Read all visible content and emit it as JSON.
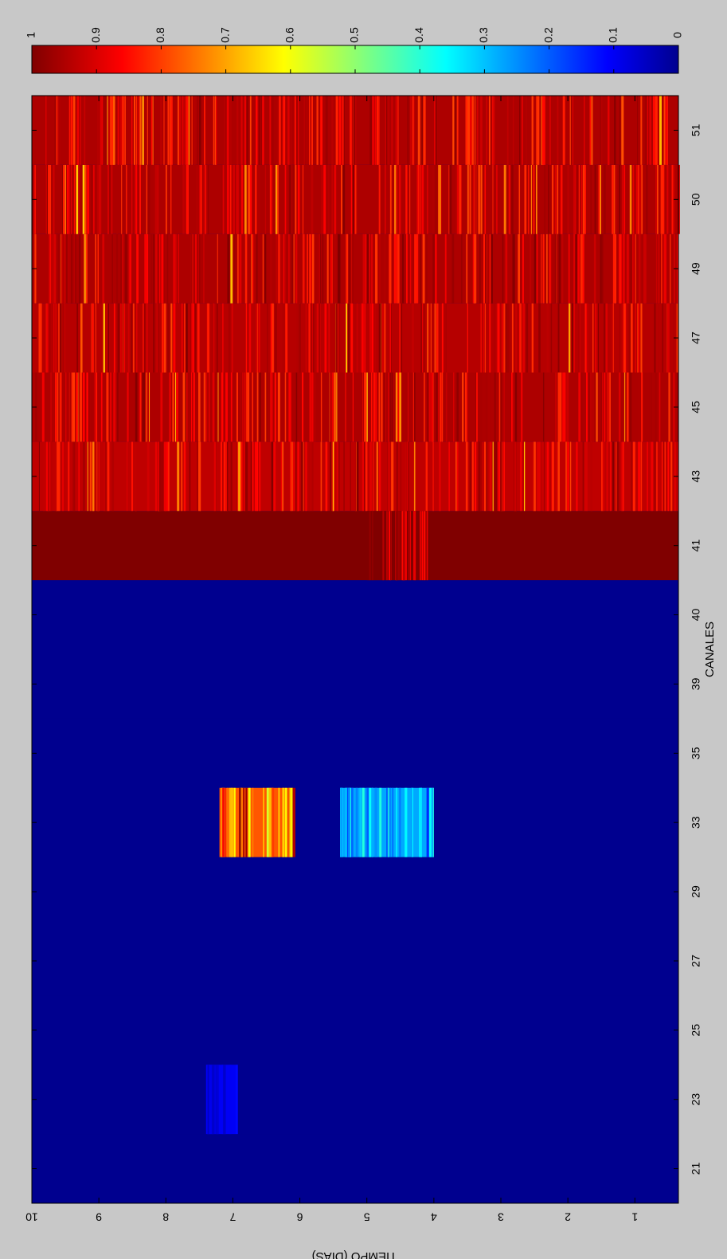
{
  "chart_data": {
    "type": "heatmap",
    "orientation": "rotated-90-ccw",
    "xlabel": "CANALES",
    "ylabel": "TIEMPO (DIAS)",
    "x_categories": [
      "21",
      "23",
      "25",
      "27",
      "29",
      "33",
      "35",
      "39",
      "40",
      "41",
      "43",
      "45",
      "47",
      "49",
      "50",
      "51"
    ],
    "ylim": [
      0.35,
      10
    ],
    "y_ticks": [
      "1",
      "2",
      "3",
      "4",
      "5",
      "6",
      "7",
      "8",
      "9",
      "10"
    ],
    "colorbar": {
      "colormap": "jet",
      "range": [
        0,
        1
      ],
      "ticks": [
        "0",
        "0.1",
        "0.2",
        "0.3",
        "0.4",
        "0.5",
        "0.6",
        "0.7",
        "0.8",
        "0.9",
        "1"
      ]
    },
    "channel_levels": [
      {
        "channel": "21",
        "value": 0.0
      },
      {
        "channel": "23",
        "value": 0.0
      },
      {
        "channel": "25",
        "value": 0.0
      },
      {
        "channel": "27",
        "value": 0.0
      },
      {
        "channel": "29",
        "value": 0.0
      },
      {
        "channel": "33",
        "value": 0.0
      },
      {
        "channel": "35",
        "value": 0.0
      },
      {
        "channel": "39",
        "value": 0.0
      },
      {
        "channel": "40",
        "value": 0.0
      },
      {
        "channel": "41",
        "value": 1.0
      },
      {
        "channel": "43",
        "value": 0.93
      },
      {
        "channel": "45",
        "value": 0.95
      },
      {
        "channel": "47",
        "value": 0.94
      },
      {
        "channel": "49",
        "value": 0.95
      },
      {
        "channel": "50",
        "value": 0.95
      },
      {
        "channel": "51",
        "value": 0.95
      }
    ],
    "notable_regions": [
      {
        "channel": "33",
        "time_range": [
          6.1,
          7.2
        ],
        "value_range": [
          0.55,
          1.0
        ]
      },
      {
        "channel": "33",
        "time_range": [
          4.0,
          5.4
        ],
        "value_range": [
          0.15,
          0.4
        ]
      },
      {
        "channel": "23",
        "time_range": [
          6.95,
          7.4
        ],
        "value_range": [
          0.05,
          0.15
        ]
      },
      {
        "channel": "41",
        "time_range": [
          4.1,
          5.0
        ],
        "value_range": [
          0.85,
          1.0
        ]
      }
    ]
  }
}
